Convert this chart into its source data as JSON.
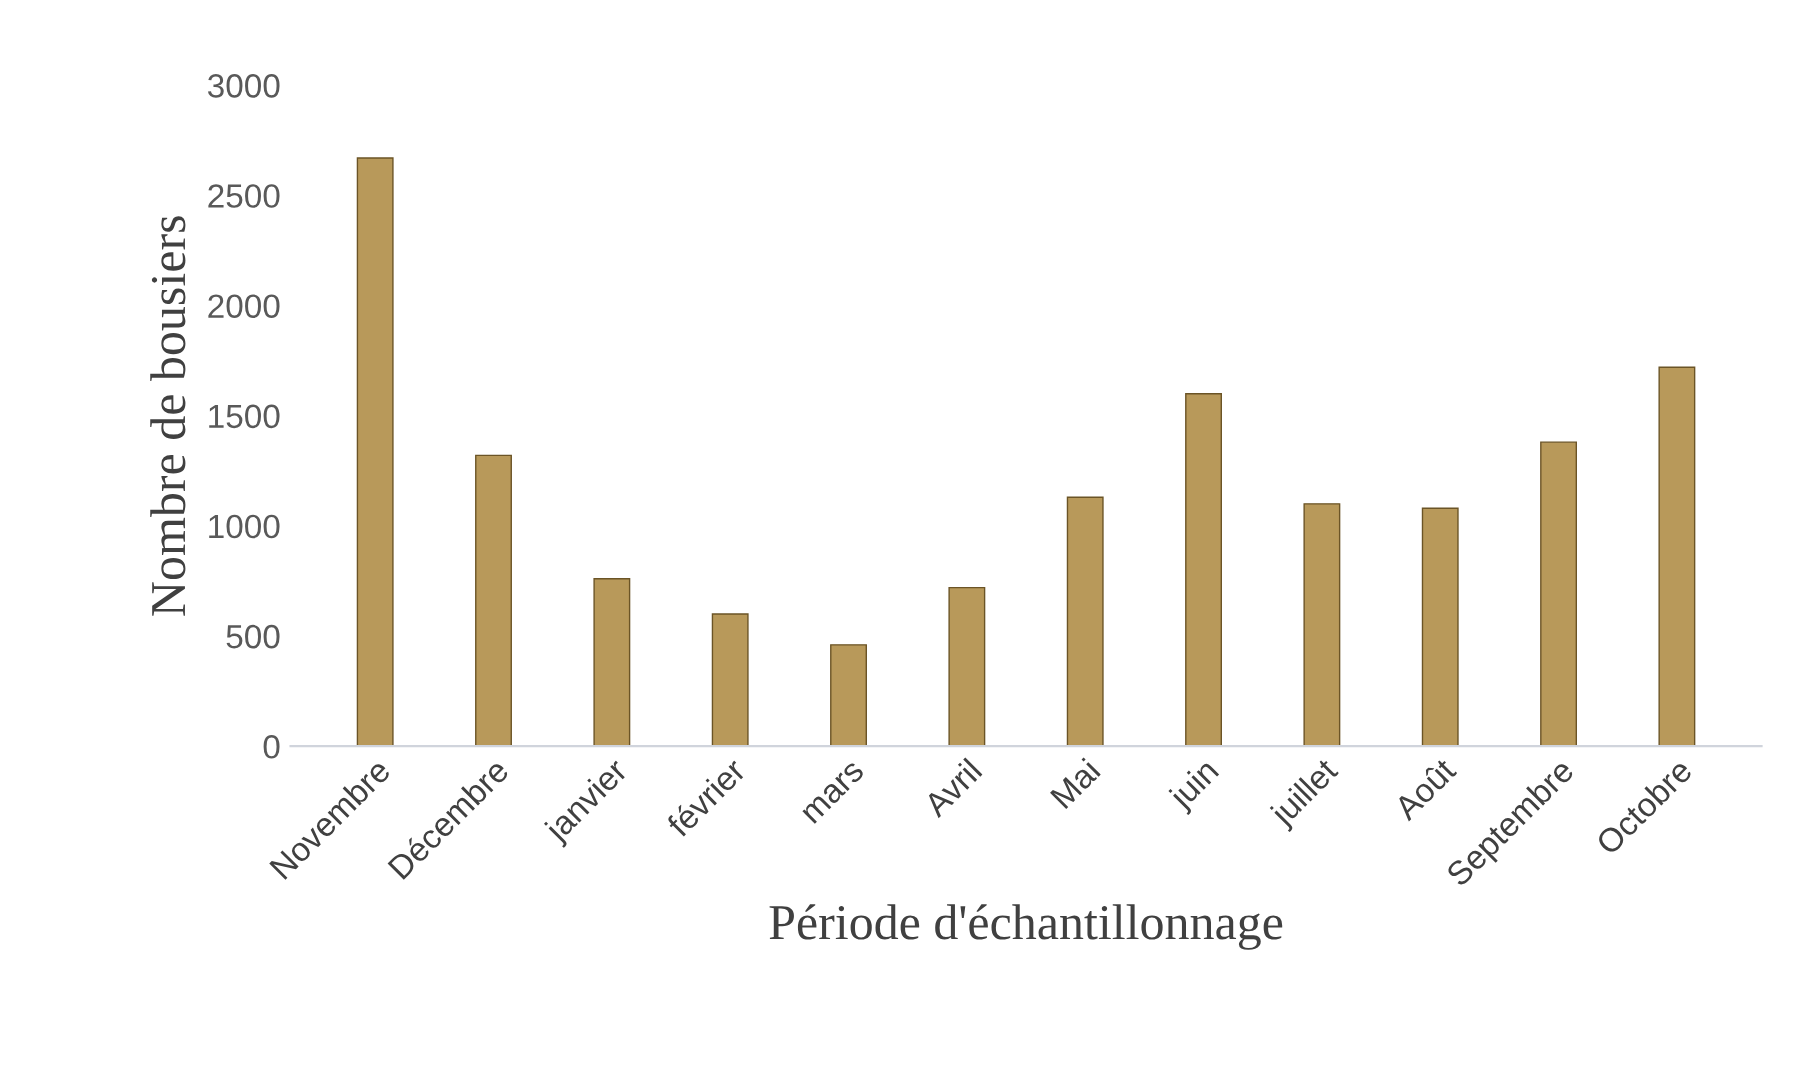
{
  "chart_data": {
    "type": "bar",
    "xlabel": "Période d'échantillonnage",
    "ylabel": "Nombre de bousiers",
    "categories": [
      "Novembre",
      "Décembre",
      "janvier",
      "février",
      "mars",
      "Avril",
      "Mai",
      "juin",
      "juillet",
      "Août",
      "Septembre",
      "Octobre"
    ],
    "values": [
      2670,
      1320,
      760,
      600,
      460,
      720,
      1130,
      1600,
      1100,
      1080,
      1380,
      1720
    ],
    "color": "#b8995a",
    "ylim": [
      0,
      3000
    ],
    "yticks": [
      0,
      500,
      1000,
      1500,
      2000,
      2500,
      3000
    ],
    "grid": false
  }
}
